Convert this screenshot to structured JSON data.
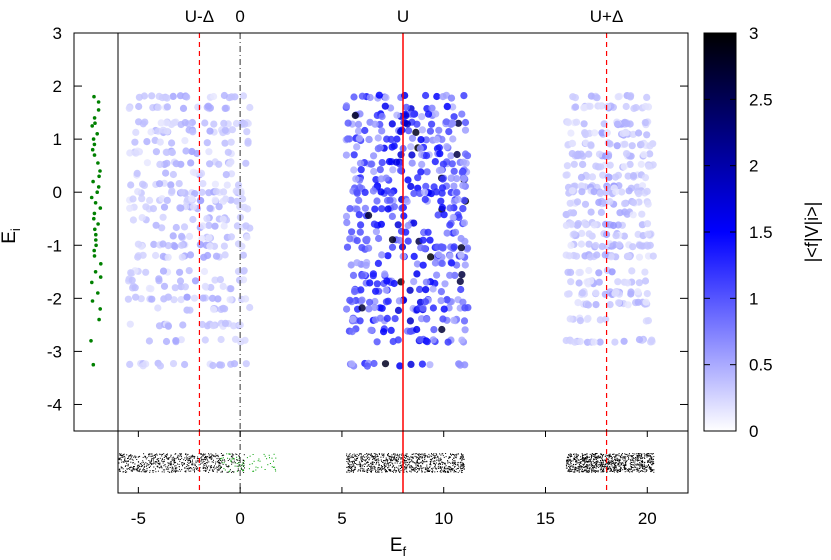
{
  "chart_data": {
    "type": "scatter",
    "xlabel_main": "E",
    "xlabel_sub": "f",
    "ylabel_main": "E",
    "ylabel_sub": "i",
    "xlim": [
      -6,
      22
    ],
    "ylim": [
      -4.5,
      3
    ],
    "x_ticks": [
      "-5",
      "0",
      "5",
      "10",
      "15",
      "20"
    ],
    "x_tick_values": [
      -5,
      0,
      5,
      10,
      15,
      20
    ],
    "y_ticks": [
      "3",
      "2",
      "1",
      "0",
      "-1",
      "-2",
      "-3",
      "-4"
    ],
    "y_tick_values": [
      3,
      2,
      1,
      0,
      -1,
      -2,
      -3,
      -4
    ],
    "colorbar": {
      "label": "|<f|V|i>|",
      "range": [
        0,
        3
      ],
      "ticks": [
        "0",
        "0.5",
        "1",
        "1.5",
        "2",
        "2.5",
        "3"
      ],
      "tick_values": [
        0,
        0.5,
        1,
        1.5,
        2,
        2.5,
        3
      ],
      "colors": [
        "#ffffff",
        "#0000ff",
        "#000000"
      ]
    },
    "top_labels": [
      {
        "text": "U-Δ",
        "x": -2
      },
      {
        "text": "0",
        "x": 0
      },
      {
        "text": "U",
        "x": 8
      },
      {
        "text": "U+Δ",
        "x": 18
      }
    ],
    "vertical_lines": [
      {
        "x": -2,
        "style": "dashed",
        "color": "#ff0000"
      },
      {
        "x": 0,
        "style": "dashdot",
        "color": "#555555"
      },
      {
        "x": 8,
        "style": "solid",
        "color": "#ff0000"
      },
      {
        "x": 18,
        "style": "dashed",
        "color": "#ff0000"
      }
    ],
    "initial_levels_color": "#008000",
    "initial_levels_x": -6.5,
    "initial_levels_y": [
      1.8,
      1.7,
      1.55,
      1.4,
      1.3,
      1.25,
      1.1,
      1.0,
      0.9,
      0.8,
      0.7,
      0.55,
      0.4,
      0.3,
      0.2,
      0.1,
      0.0,
      -0.1,
      -0.2,
      -0.3,
      -0.4,
      -0.5,
      -0.6,
      -0.7,
      -0.8,
      -0.9,
      -1.0,
      -1.1,
      -1.2,
      -1.35,
      -1.5,
      -1.6,
      -1.7,
      -1.9,
      -2.05,
      -2.2,
      -2.4,
      -2.8,
      -3.25
    ],
    "clusters": [
      {
        "x_min": -5.5,
        "x_max": 0.5,
        "y_levels": [
          1.8,
          1.6,
          1.3,
          1.15,
          0.95,
          0.75,
          0.55,
          0.35,
          0.15,
          0.0,
          -0.15,
          -0.3,
          -0.5,
          -0.65,
          -0.85,
          -1.0,
          -1.2,
          -1.5,
          -1.65,
          -1.8,
          -2.0,
          -2.2,
          -2.5,
          -2.8,
          -3.25
        ],
        "strength": 0.3
      },
      {
        "x_min": 5.2,
        "x_max": 11.2,
        "y_levels": [
          1.8,
          1.6,
          1.45,
          1.3,
          1.15,
          1.0,
          0.85,
          0.7,
          0.55,
          0.4,
          0.25,
          0.1,
          0.0,
          -0.15,
          -0.3,
          -0.45,
          -0.6,
          -0.75,
          -0.9,
          -1.05,
          -1.2,
          -1.35,
          -1.55,
          -1.7,
          -1.85,
          -2.05,
          -2.2,
          -2.4,
          -2.6,
          -2.8,
          -3.25
        ],
        "strength": 0.9
      },
      {
        "x_min": 16.0,
        "x_max": 20.3,
        "y_levels": [
          1.8,
          1.6,
          1.3,
          1.1,
          0.9,
          0.7,
          0.5,
          0.3,
          0.1,
          0.0,
          -0.2,
          -0.4,
          -0.6,
          -0.8,
          -1.0,
          -1.2,
          -1.5,
          -1.7,
          -1.9,
          -2.1,
          -2.4,
          -2.8
        ],
        "strength": 0.3
      }
    ],
    "bottom_strip": {
      "segments": [
        {
          "x_min": -6.0,
          "x_max": 1.8,
          "color": "#000000",
          "green_x_min": -1.0,
          "green_x_max": 1.8
        },
        {
          "x_min": 5.2,
          "x_max": 11.0,
          "color": "#000000"
        },
        {
          "x_min": 16.0,
          "x_max": 20.3,
          "color": "#000000"
        }
      ]
    }
  }
}
